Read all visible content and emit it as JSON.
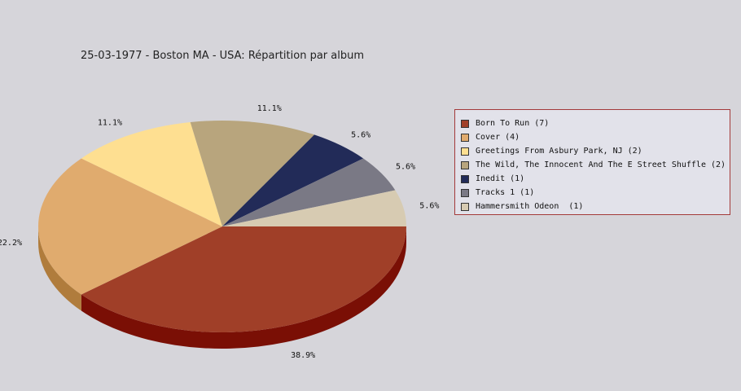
{
  "chart_data": {
    "type": "pie",
    "title": "25-03-1977 - Boston MA - USA:  Répartition par album",
    "legend_position": "right",
    "slices": [
      {
        "label": "Born To Run (7)",
        "value": 7,
        "percent_label": "38.9%",
        "color": "#a03f28",
        "side_color": "#7a0f05"
      },
      {
        "label": "Cover (4)",
        "value": 4,
        "percent_label": "22.2%",
        "color": "#e0ab6e",
        "side_color": "#b07c3c"
      },
      {
        "label": "Greetings From Asbury Park, NJ (2)",
        "value": 2,
        "percent_label": "11.1%",
        "color": "#fedf91",
        "side_color": "#c9a85c"
      },
      {
        "label": "The Wild, The Innocent And The E Street Shuffle (2)",
        "value": 2,
        "percent_label": "11.1%",
        "color": "#b8a57d",
        "side_color": "#8a7a56"
      },
      {
        "label": "Inedit (1)",
        "value": 1,
        "percent_label": "5.6%",
        "color": "#222b58",
        "side_color": "#121838"
      },
      {
        "label": "Tracks 1 (1)",
        "value": 1,
        "percent_label": "5.6%",
        "color": "#7a7985",
        "side_color": "#55545e"
      },
      {
        "label": "Hammersmith Odeon  (1)",
        "value": 1,
        "percent_label": "5.6%",
        "color": "#d7cbb2",
        "side_color": "#a99d86"
      }
    ]
  }
}
